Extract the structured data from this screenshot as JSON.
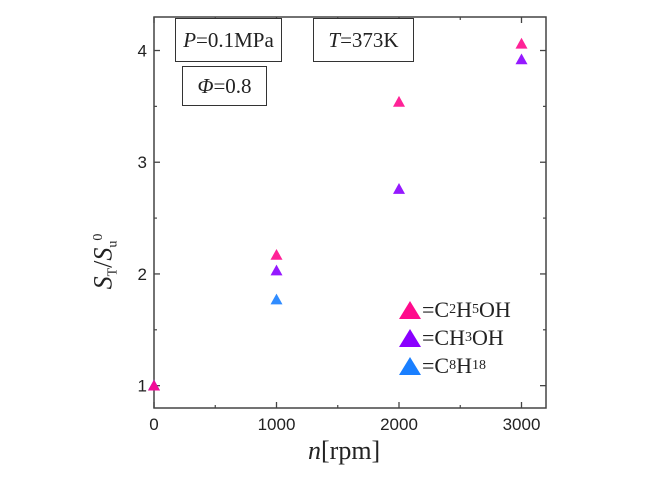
{
  "chart_data": {
    "type": "scatter",
    "title": "",
    "xlabel": "n[rpm]",
    "xlabel_var": "n",
    "xlabel_unit": "[rpm]",
    "ylabel": "S_T/S_u^0",
    "xlim": [
      0,
      3200
    ],
    "ylim": [
      0.8,
      4.3
    ],
    "xticks": [
      0,
      1000,
      2000,
      3000
    ],
    "xtick_labels": [
      "0",
      "1000",
      "2000",
      "3000"
    ],
    "xminor": [
      500,
      1500,
      2500
    ],
    "yticks": [
      1,
      2,
      3,
      4
    ],
    "ytick_labels": [
      "1",
      "2",
      "3",
      "4"
    ],
    "yminor": [
      1.5,
      2.5,
      3.5
    ],
    "grid": false,
    "legend_position": "bottom-right",
    "series": [
      {
        "name": "C2H5OH",
        "label_parts": [
          "=C",
          "2",
          "H",
          "5",
          "OH"
        ],
        "color": "#ff0a8c",
        "marker": "triangle",
        "x": [
          0,
          1000,
          2000,
          3000
        ],
        "y": [
          1.0,
          2.17,
          3.54,
          4.06
        ]
      },
      {
        "name": "CH3OH",
        "label_parts": [
          "=CH",
          "3",
          "OH"
        ],
        "color": "#8a00ff",
        "marker": "triangle",
        "x": [
          0,
          1000,
          2000,
          3000
        ],
        "y": [
          1.0,
          2.03,
          2.76,
          3.92
        ]
      },
      {
        "name": "C8H18",
        "label_parts": [
          "=C",
          "8",
          "H",
          "18"
        ],
        "color": "#1a7fff",
        "marker": "triangle",
        "x": [
          0,
          1000
        ],
        "y": [
          1.0,
          1.77
        ]
      }
    ],
    "annotations": [
      {
        "var": "P",
        "value": "=0.1MPa"
      },
      {
        "var": "T",
        "value": "=373K"
      },
      {
        "var": "Φ",
        "value": "=0.8"
      }
    ]
  }
}
